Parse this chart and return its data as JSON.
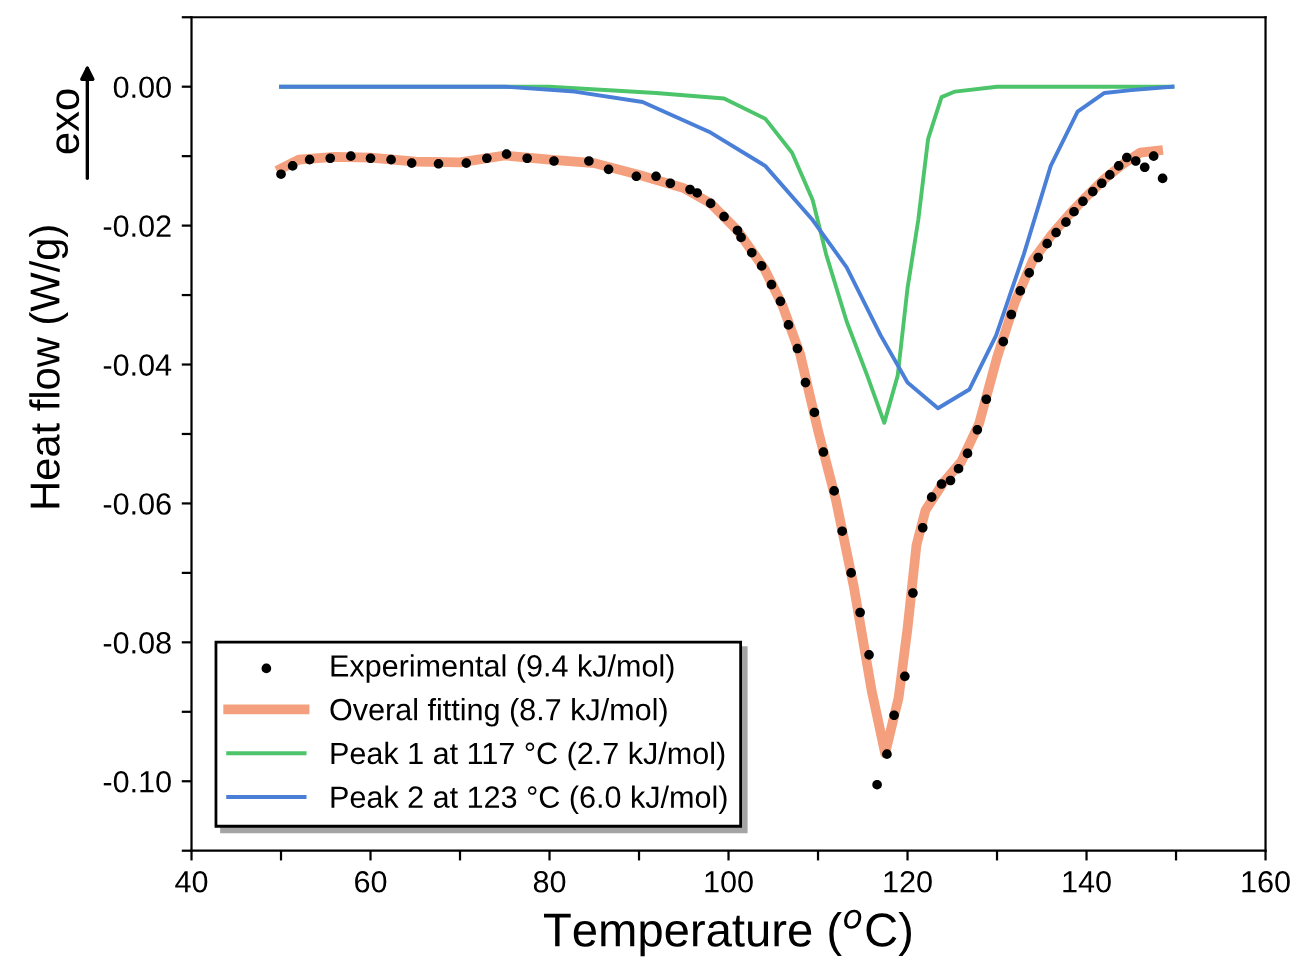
{
  "chart_data": {
    "type": "line",
    "xlabel": "Temperature ($^{o}$C)",
    "ylabel": "Heat flow (W/g)",
    "annotations": [
      "exo"
    ],
    "xlim": [
      40,
      160
    ],
    "ylim": [
      -0.11,
      0.01
    ],
    "xticks": [
      40,
      {
        "value": 50,
        "label": null
      },
      60,
      {
        "value": 70,
        "label": null
      },
      80,
      {
        "value": 90,
        "label": null
      },
      100,
      {
        "value": 110,
        "label": null
      },
      120,
      {
        "value": 130,
        "label": null
      },
      140,
      {
        "value": 150,
        "label": null
      },
      160
    ],
    "yticks": [
      {
        "value": 0.01,
        "label": null
      },
      {
        "value": 0.0,
        "label": "0.00"
      },
      {
        "value": -0.01,
        "label": null
      },
      {
        "value": -0.02,
        "label": "-0.02"
      },
      {
        "value": -0.03,
        "label": null
      },
      {
        "value": -0.04,
        "label": "-0.04"
      },
      {
        "value": -0.05,
        "label": null
      },
      {
        "value": -0.06,
        "label": "-0.06"
      },
      {
        "value": -0.07,
        "label": null
      },
      {
        "value": -0.08,
        "label": "-0.08"
      },
      {
        "value": -0.09,
        "label": null
      },
      {
        "value": -0.1,
        "label": "-0.10"
      },
      {
        "value": -0.11,
        "label": null
      }
    ],
    "grid": false,
    "legend": "bottom left",
    "series": [
      {
        "name": "Experimental (9.4 kJ/mol)",
        "type": "scatter",
        "marker": "circle",
        "color": "#000000",
        "x": [
          50.0,
          51.3,
          53.2,
          55.5,
          57.8,
          60.0,
          62.3,
          64.6,
          67.6,
          70.7,
          73.0,
          75.2,
          77.5,
          80.5,
          84.4,
          86.6,
          89.7,
          91.9,
          93.5,
          95.7,
          96.5,
          98.0,
          99.5,
          101.0,
          101.4,
          102.6,
          103.7,
          104.8,
          105.8,
          106.7,
          107.7,
          108.6,
          109.6,
          110.6,
          111.8,
          112.7,
          113.7,
          114.7,
          115.7,
          116.6,
          117.7,
          118.5,
          119.7,
          120.6,
          121.7,
          122.7,
          123.8,
          124.8,
          125.7,
          126.7,
          127.8,
          128.8,
          130.7,
          131.6,
          132.6,
          133.6,
          134.6,
          135.6,
          136.6,
          137.7,
          138.6,
          139.6,
          140.7,
          141.7,
          142.6,
          143.6,
          144.5,
          145.5,
          146.5,
          147.5,
          148.5
        ],
        "values": [
          -0.0126,
          -0.0114,
          -0.0105,
          -0.0103,
          -0.01,
          -0.0103,
          -0.0105,
          -0.011,
          -0.0111,
          -0.011,
          -0.0103,
          -0.0097,
          -0.0103,
          -0.0107,
          -0.0107,
          -0.0119,
          -0.0129,
          -0.0129,
          -0.0139,
          -0.0148,
          -0.0153,
          -0.0168,
          -0.0187,
          -0.0207,
          -0.0217,
          -0.0239,
          -0.0258,
          -0.0285,
          -0.0309,
          -0.0343,
          -0.0377,
          -0.0426,
          -0.0469,
          -0.0526,
          -0.0582,
          -0.064,
          -0.07,
          -0.0757,
          -0.0818,
          -0.1005,
          -0.0961,
          -0.0905,
          -0.0849,
          -0.0729,
          -0.0635,
          -0.0591,
          -0.0572,
          -0.0567,
          -0.055,
          -0.0528,
          -0.0494,
          -0.045,
          -0.0367,
          -0.0328,
          -0.0294,
          -0.0268,
          -0.0246,
          -0.0226,
          -0.021,
          -0.0195,
          -0.018,
          -0.0165,
          -0.0151,
          -0.0139,
          -0.0127,
          -0.0114,
          -0.0102,
          -0.0107,
          -0.0116,
          -0.01,
          -0.0132
        ]
      },
      {
        "name": "Overal fitting (8.7 kJ/mol)",
        "color": "#f4a07e",
        "x": [
          50,
          52,
          56,
          60,
          65,
          70,
          75,
          80,
          85,
          90,
          95,
          98,
          101,
          104,
          106,
          108,
          110,
          112,
          114,
          116,
          117.5,
          119,
          120,
          121,
          122,
          124,
          126,
          128,
          130,
          132,
          134,
          136,
          138,
          140,
          142,
          144,
          146,
          148
        ],
        "values": [
          -0.0118,
          -0.0105,
          -0.0101,
          -0.0102,
          -0.0108,
          -0.0109,
          -0.0099,
          -0.0105,
          -0.011,
          -0.0127,
          -0.0146,
          -0.0168,
          -0.0207,
          -0.0262,
          -0.0314,
          -0.0385,
          -0.0495,
          -0.0595,
          -0.072,
          -0.087,
          -0.096,
          -0.088,
          -0.078,
          -0.066,
          -0.061,
          -0.057,
          -0.054,
          -0.0485,
          -0.039,
          -0.031,
          -0.025,
          -0.0215,
          -0.0185,
          -0.0158,
          -0.0133,
          -0.0112,
          -0.0095,
          -0.0092
        ]
      },
      {
        "name": "Peak 1 at 117 °C (2.7 kJ/mol)",
        "color": "#4cc46a",
        "x": [
          50,
          80,
          91.9,
          99.5,
          104.1,
          107.1,
          109.4,
          110.9,
          113.2,
          115.5,
          117.4,
          118.9,
          120.0,
          121.2,
          122.3,
          123.8,
          125.3,
          130,
          149.6
        ],
        "values": [
          0.0,
          0.0,
          -0.0009,
          -0.0017,
          -0.0046,
          -0.0095,
          -0.0163,
          -0.0241,
          -0.0338,
          -0.0416,
          -0.0484,
          -0.0416,
          -0.029,
          -0.0192,
          -0.0075,
          -0.0015,
          -0.0007,
          0.0,
          0.0
        ]
      },
      {
        "name": "Peak 2 at 123 °C (6.0 kJ/mol)",
        "color": "#4a7fd8",
        "x": [
          50,
          75,
          82.8,
          90.4,
          98.0,
          104.1,
          109.4,
          113.2,
          117.0,
          120.0,
          123.4,
          126.9,
          129.9,
          133.0,
          136.0,
          139.0,
          142.0,
          145.0,
          149.6
        ],
        "values": [
          0.0,
          0.0,
          -0.0007,
          -0.0022,
          -0.0066,
          -0.0114,
          -0.0192,
          -0.026,
          -0.0358,
          -0.0426,
          -0.0463,
          -0.0436,
          -0.0358,
          -0.0241,
          -0.0114,
          -0.0036,
          -0.0009,
          -0.0005,
          0.0
        ]
      }
    ]
  }
}
